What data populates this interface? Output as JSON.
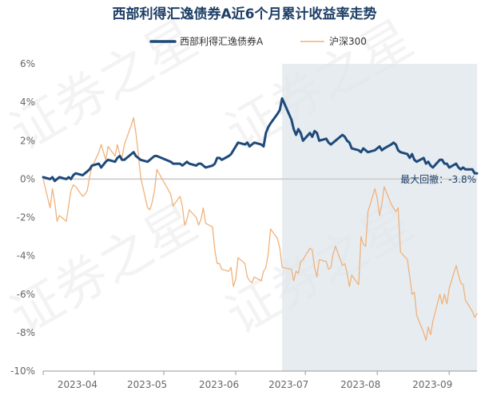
{
  "chart_data": {
    "type": "line",
    "title": "西部利得汇逸债券A近6个月累计收益率走势",
    "ylim": [
      -10,
      6
    ],
    "y_ticks": [
      "6%",
      "4%",
      "2%",
      "0%",
      "-2%",
      "-4%",
      "-6%",
      "-8%",
      "-10%"
    ],
    "x_ticks": [
      "2023-04",
      "2023-05",
      "2023-06",
      "2023-07",
      "2023-08",
      "2023-09"
    ],
    "legend_position": "top-center",
    "grid": false,
    "drawdown_range": [
      "2023-06-21",
      "2023-09-13"
    ],
    "annotation": "最大回撤：-3.8%",
    "watermark": "证券之星",
    "series": [
      {
        "name": "西部利得汇逸债券A",
        "color": "#1e4a7a",
        "points": [
          [
            "2023-03-10",
            0.1
          ],
          [
            "2023-03-13",
            0.0
          ],
          [
            "2023-03-14",
            0.1
          ],
          [
            "2023-03-15",
            -0.1
          ],
          [
            "2023-03-16",
            0.0
          ],
          [
            "2023-03-17",
            0.1
          ],
          [
            "2023-03-20",
            0.0
          ],
          [
            "2023-03-21",
            0.1
          ],
          [
            "2023-03-22",
            0.0
          ],
          [
            "2023-03-23",
            0.2
          ],
          [
            "2023-03-24",
            0.3
          ],
          [
            "2023-03-27",
            0.2
          ],
          [
            "2023-03-28",
            0.3
          ],
          [
            "2023-03-29",
            0.4
          ],
          [
            "2023-03-30",
            0.5
          ],
          [
            "2023-03-31",
            0.7
          ],
          [
            "2023-04-03",
            0.8
          ],
          [
            "2023-04-04",
            0.6
          ],
          [
            "2023-04-06",
            0.9
          ],
          [
            "2023-04-07",
            1.0
          ],
          [
            "2023-04-10",
            0.9
          ],
          [
            "2023-04-11",
            1.1
          ],
          [
            "2023-04-12",
            1.2
          ],
          [
            "2023-04-13",
            1.0
          ],
          [
            "2023-04-14",
            1.0
          ],
          [
            "2023-04-17",
            1.3
          ],
          [
            "2023-04-18",
            1.4
          ],
          [
            "2023-04-19",
            1.2
          ],
          [
            "2023-04-20",
            1.1
          ],
          [
            "2023-04-21",
            1.0
          ],
          [
            "2023-04-24",
            0.9
          ],
          [
            "2023-04-25",
            1.0
          ],
          [
            "2023-04-26",
            1.1
          ],
          [
            "2023-04-27",
            1.2
          ],
          [
            "2023-04-28",
            1.2
          ],
          [
            "2023-05-04",
            0.9
          ],
          [
            "2023-05-05",
            0.8
          ],
          [
            "2023-05-08",
            0.8
          ],
          [
            "2023-05-09",
            0.7
          ],
          [
            "2023-05-10",
            0.8
          ],
          [
            "2023-05-11",
            0.9
          ],
          [
            "2023-05-12",
            0.8
          ],
          [
            "2023-05-15",
            0.7
          ],
          [
            "2023-05-16",
            0.8
          ],
          [
            "2023-05-17",
            0.8
          ],
          [
            "2023-05-18",
            0.7
          ],
          [
            "2023-05-19",
            0.6
          ],
          [
            "2023-05-22",
            0.7
          ],
          [
            "2023-05-23",
            0.8
          ],
          [
            "2023-05-24",
            1.1
          ],
          [
            "2023-05-25",
            1.1
          ],
          [
            "2023-05-26",
            1.0
          ],
          [
            "2023-05-29",
            1.2
          ],
          [
            "2023-05-30",
            1.3
          ],
          [
            "2023-05-31",
            1.5
          ],
          [
            "2023-06-01",
            1.7
          ],
          [
            "2023-06-02",
            1.9
          ],
          [
            "2023-06-05",
            1.8
          ],
          [
            "2023-06-06",
            1.9
          ],
          [
            "2023-06-07",
            1.7
          ],
          [
            "2023-06-08",
            1.8
          ],
          [
            "2023-06-09",
            1.9
          ],
          [
            "2023-06-12",
            1.8
          ],
          [
            "2023-06-13",
            1.7
          ],
          [
            "2023-06-14",
            2.4
          ],
          [
            "2023-06-15",
            2.7
          ],
          [
            "2023-06-16",
            2.9
          ],
          [
            "2023-06-19",
            3.4
          ],
          [
            "2023-06-20",
            3.6
          ],
          [
            "2023-06-21",
            4.2
          ],
          [
            "2023-06-25",
            3.1
          ],
          [
            "2023-06-26",
            2.6
          ],
          [
            "2023-06-27",
            2.3
          ],
          [
            "2023-06-28",
            2.6
          ],
          [
            "2023-06-29",
            2.4
          ],
          [
            "2023-06-30",
            2.0
          ],
          [
            "2023-07-03",
            2.4
          ],
          [
            "2023-07-04",
            2.2
          ],
          [
            "2023-07-05",
            2.5
          ],
          [
            "2023-07-06",
            2.4
          ],
          [
            "2023-07-07",
            2.0
          ],
          [
            "2023-07-10",
            2.1
          ],
          [
            "2023-07-11",
            1.9
          ],
          [
            "2023-07-12",
            1.8
          ],
          [
            "2023-07-13",
            1.9
          ],
          [
            "2023-07-14",
            2.0
          ],
          [
            "2023-07-17",
            2.3
          ],
          [
            "2023-07-18",
            2.2
          ],
          [
            "2023-07-19",
            2.0
          ],
          [
            "2023-07-20",
            1.9
          ],
          [
            "2023-07-21",
            1.6
          ],
          [
            "2023-07-24",
            1.5
          ],
          [
            "2023-07-25",
            1.4
          ],
          [
            "2023-07-26",
            1.6
          ],
          [
            "2023-07-27",
            1.5
          ],
          [
            "2023-07-28",
            1.4
          ],
          [
            "2023-07-31",
            1.5
          ],
          [
            "2023-08-01",
            1.6
          ],
          [
            "2023-08-02",
            1.7
          ],
          [
            "2023-08-03",
            1.5
          ],
          [
            "2023-08-04",
            1.6
          ],
          [
            "2023-08-07",
            1.8
          ],
          [
            "2023-08-08",
            1.9
          ],
          [
            "2023-08-09",
            1.8
          ],
          [
            "2023-08-10",
            1.5
          ],
          [
            "2023-08-11",
            1.4
          ],
          [
            "2023-08-14",
            1.3
          ],
          [
            "2023-08-15",
            1.1
          ],
          [
            "2023-08-16",
            1.3
          ],
          [
            "2023-08-17",
            1.0
          ],
          [
            "2023-08-18",
            0.9
          ],
          [
            "2023-08-21",
            1.1
          ],
          [
            "2023-08-22",
            0.8
          ],
          [
            "2023-08-23",
            0.9
          ],
          [
            "2023-08-24",
            0.7
          ],
          [
            "2023-08-25",
            0.6
          ],
          [
            "2023-08-28",
            1.0
          ],
          [
            "2023-08-29",
            1.0
          ],
          [
            "2023-08-30",
            0.8
          ],
          [
            "2023-08-31",
            0.8
          ],
          [
            "2023-09-01",
            0.6
          ],
          [
            "2023-09-04",
            0.8
          ],
          [
            "2023-09-05",
            0.6
          ],
          [
            "2023-09-06",
            0.5
          ],
          [
            "2023-09-07",
            0.6
          ],
          [
            "2023-09-08",
            0.5
          ],
          [
            "2023-09-11",
            0.5
          ],
          [
            "2023-09-12",
            0.3
          ],
          [
            "2023-09-13",
            0.3
          ]
        ]
      },
      {
        "name": "沪深300",
        "color": "#f0b27a",
        "points": [
          [
            "2023-03-10",
            0.0
          ],
          [
            "2023-03-13",
            -1.5
          ],
          [
            "2023-03-14",
            -0.5
          ],
          [
            "2023-03-15",
            -1.2
          ],
          [
            "2023-03-16",
            -2.2
          ],
          [
            "2023-03-17",
            -1.9
          ],
          [
            "2023-03-20",
            -2.2
          ],
          [
            "2023-03-21",
            -1.4
          ],
          [
            "2023-03-22",
            -0.6
          ],
          [
            "2023-03-23",
            -0.3
          ],
          [
            "2023-03-24",
            -0.4
          ],
          [
            "2023-03-27",
            -0.9
          ],
          [
            "2023-03-28",
            -0.8
          ],
          [
            "2023-03-29",
            -0.6
          ],
          [
            "2023-03-30",
            0.1
          ],
          [
            "2023-03-31",
            0.6
          ],
          [
            "2023-04-03",
            1.4
          ],
          [
            "2023-04-04",
            1.8
          ],
          [
            "2023-04-06",
            1.0
          ],
          [
            "2023-04-07",
            1.7
          ],
          [
            "2023-04-10",
            1.2
          ],
          [
            "2023-04-11",
            1.8
          ],
          [
            "2023-04-12",
            1.3
          ],
          [
            "2023-04-13",
            1.1
          ],
          [
            "2023-04-14",
            1.8
          ],
          [
            "2023-04-17",
            2.8
          ],
          [
            "2023-04-18",
            3.2
          ],
          [
            "2023-04-19",
            2.4
          ],
          [
            "2023-04-20",
            1.3
          ],
          [
            "2023-04-21",
            0.1
          ],
          [
            "2023-04-24",
            -1.5
          ],
          [
            "2023-04-25",
            -1.6
          ],
          [
            "2023-04-26",
            -1.2
          ],
          [
            "2023-04-27",
            -0.6
          ],
          [
            "2023-04-28",
            0.5
          ],
          [
            "2023-05-04",
            -0.8
          ],
          [
            "2023-05-05",
            -1.4
          ],
          [
            "2023-05-08",
            -0.9
          ],
          [
            "2023-05-09",
            -1.4
          ],
          [
            "2023-05-10",
            -2.4
          ],
          [
            "2023-05-11",
            -2.1
          ],
          [
            "2023-05-12",
            -1.6
          ],
          [
            "2023-05-15",
            -2.0
          ],
          [
            "2023-05-16",
            -2.4
          ],
          [
            "2023-05-17",
            -2.1
          ],
          [
            "2023-05-18",
            -1.5
          ],
          [
            "2023-05-19",
            -2.3
          ],
          [
            "2023-05-22",
            -2.5
          ],
          [
            "2023-05-23",
            -3.7
          ],
          [
            "2023-05-24",
            -4.4
          ],
          [
            "2023-05-25",
            -4.4
          ],
          [
            "2023-05-26",
            -4.7
          ],
          [
            "2023-05-29",
            -4.8
          ],
          [
            "2023-05-30",
            -4.6
          ],
          [
            "2023-05-31",
            -5.6
          ],
          [
            "2023-06-01",
            -5.2
          ],
          [
            "2023-06-02",
            -4.1
          ],
          [
            "2023-06-05",
            -4.4
          ],
          [
            "2023-06-06",
            -5.1
          ],
          [
            "2023-06-07",
            -5.3
          ],
          [
            "2023-06-08",
            -5.4
          ],
          [
            "2023-06-09",
            -5.1
          ],
          [
            "2023-06-12",
            -5.3
          ],
          [
            "2023-06-13",
            -4.8
          ],
          [
            "2023-06-14",
            -4.6
          ],
          [
            "2023-06-15",
            -3.9
          ],
          [
            "2023-06-16",
            -2.6
          ],
          [
            "2023-06-19",
            -3.1
          ],
          [
            "2023-06-20",
            -3.6
          ],
          [
            "2023-06-21",
            -4.6
          ],
          [
            "2023-06-25",
            -4.7
          ],
          [
            "2023-06-26",
            -5.3
          ],
          [
            "2023-06-27",
            -4.8
          ],
          [
            "2023-06-28",
            -4.9
          ],
          [
            "2023-06-29",
            -4.3
          ],
          [
            "2023-06-30",
            -4.2
          ],
          [
            "2023-07-03",
            -3.6
          ],
          [
            "2023-07-04",
            -3.7
          ],
          [
            "2023-07-05",
            -4.6
          ],
          [
            "2023-07-06",
            -5.1
          ],
          [
            "2023-07-07",
            -4.2
          ],
          [
            "2023-07-10",
            -4.3
          ],
          [
            "2023-07-11",
            -4.7
          ],
          [
            "2023-07-12",
            -4.6
          ],
          [
            "2023-07-13",
            -3.9
          ],
          [
            "2023-07-14",
            -3.5
          ],
          [
            "2023-07-17",
            -4.5
          ],
          [
            "2023-07-18",
            -4.4
          ],
          [
            "2023-07-19",
            -4.9
          ],
          [
            "2023-07-20",
            -5.6
          ],
          [
            "2023-07-21",
            -5.0
          ],
          [
            "2023-07-24",
            -5.5
          ],
          [
            "2023-07-25",
            -3.0
          ],
          [
            "2023-07-26",
            -3.4
          ],
          [
            "2023-07-27",
            -3.5
          ],
          [
            "2023-07-28",
            -1.7
          ],
          [
            "2023-07-31",
            -0.5
          ],
          [
            "2023-08-01",
            -1.0
          ],
          [
            "2023-08-02",
            -1.9
          ],
          [
            "2023-08-03",
            -1.3
          ],
          [
            "2023-08-04",
            -0.4
          ],
          [
            "2023-08-07",
            -1.3
          ],
          [
            "2023-08-08",
            -1.5
          ],
          [
            "2023-08-09",
            -1.7
          ],
          [
            "2023-08-10",
            -1.5
          ],
          [
            "2023-08-11",
            -3.8
          ],
          [
            "2023-08-14",
            -4.2
          ],
          [
            "2023-08-15",
            -5.1
          ],
          [
            "2023-08-16",
            -6.0
          ],
          [
            "2023-08-17",
            -5.9
          ],
          [
            "2023-08-18",
            -7.1
          ],
          [
            "2023-08-21",
            -8.0
          ],
          [
            "2023-08-22",
            -8.4
          ],
          [
            "2023-08-23",
            -7.7
          ],
          [
            "2023-08-24",
            -8.1
          ],
          [
            "2023-08-25",
            -7.4
          ],
          [
            "2023-08-28",
            -6.0
          ],
          [
            "2023-08-29",
            -6.5
          ],
          [
            "2023-08-30",
            -6.0
          ],
          [
            "2023-08-31",
            -6.5
          ],
          [
            "2023-09-01",
            -5.7
          ],
          [
            "2023-09-04",
            -4.5
          ],
          [
            "2023-09-05",
            -5.0
          ],
          [
            "2023-09-06",
            -5.4
          ],
          [
            "2023-09-07",
            -5.5
          ],
          [
            "2023-09-08",
            -6.3
          ],
          [
            "2023-09-11",
            -6.9
          ],
          [
            "2023-09-12",
            -7.2
          ],
          [
            "2023-09-13",
            -7.0
          ]
        ]
      }
    ]
  }
}
